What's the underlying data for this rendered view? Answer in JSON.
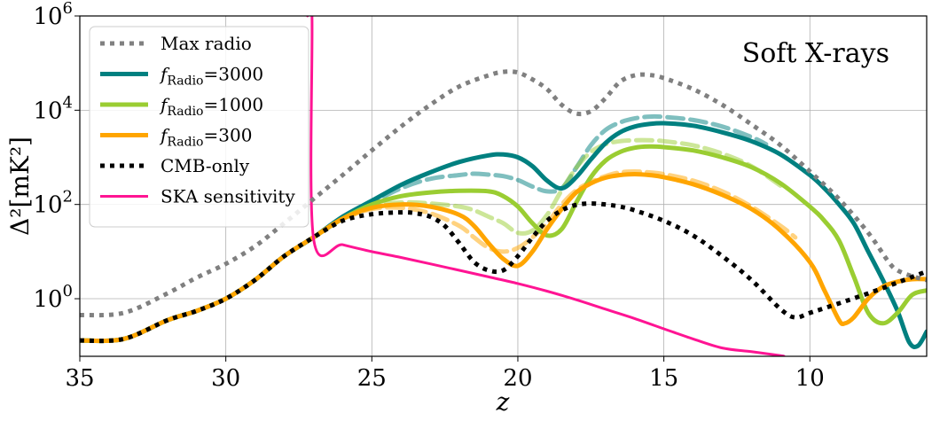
{
  "chart_data": {
    "type": "line",
    "title": "",
    "annotation": "Soft X-rays",
    "xlabel": "z",
    "ylabel": "Δ²[mK²]",
    "xlim": [
      35,
      6
    ],
    "ylim": [
      0.06,
      1000000
    ],
    "yscale": "log",
    "grid": true,
    "legend_position": "top-left",
    "x_ticks": [
      35,
      30,
      25,
      20,
      15,
      10
    ],
    "x_tick_labels": [
      "35",
      "30",
      "25",
      "20",
      "15",
      "10"
    ],
    "y_ticks": [
      1,
      100,
      10000,
      1000000
    ],
    "y_tick_labels": [
      {
        "base": "10",
        "exp": "0"
      },
      {
        "base": "10",
        "exp": "2"
      },
      {
        "base": "10",
        "exp": "4"
      },
      {
        "base": "10",
        "exp": "6"
      }
    ],
    "legend": [
      {
        "label": "Max radio",
        "color": "#808080",
        "style": "dotted"
      },
      {
        "label": "fRadio=3000",
        "math_base": "f",
        "math_sub": "Radio",
        "suffix": "=3000",
        "color": "#008080",
        "style": "solid"
      },
      {
        "label": "fRadio=1000",
        "math_base": "f",
        "math_sub": "Radio",
        "suffix": "=1000",
        "color": "#9ACD32",
        "style": "solid"
      },
      {
        "label": "fRadio=300",
        "math_base": "f",
        "math_sub": "Radio",
        "suffix": "=300",
        "color": "#FFA500",
        "style": "solid"
      },
      {
        "label": "CMB-only",
        "color": "#000000",
        "style": "dotted"
      },
      {
        "label": "SKA sensitivity",
        "color": "#FF1493",
        "style": "solid"
      }
    ],
    "series": [
      {
        "name": "Max radio",
        "color": "#808080",
        "style": "dotted",
        "x": [
          35,
          33.5,
          32,
          31,
          30,
          29,
          28,
          27,
          26,
          25,
          24,
          23,
          22,
          21,
          20.5,
          20,
          19.5,
          19,
          18.5,
          18,
          17.5,
          17,
          16.5,
          16,
          15.5,
          15,
          14,
          13,
          12,
          11,
          10,
          9,
          8,
          7.3,
          7,
          6.5,
          6
        ],
        "y": [
          0.45,
          0.5,
          1.3,
          2.8,
          5.5,
          13,
          40,
          130,
          420,
          1400,
          4500,
          13000,
          32000,
          55000,
          65000,
          63000,
          45000,
          28000,
          13000,
          8500,
          9500,
          18000,
          40000,
          55000,
          56000,
          48000,
          28000,
          13000,
          5000,
          1800,
          500,
          130,
          25,
          6,
          4,
          3,
          2.5
        ]
      },
      {
        "name": "fRadio=3000",
        "color": "#008080",
        "style": "solid",
        "x": [
          35,
          33.5,
          32,
          31,
          30,
          29,
          28,
          27,
          26,
          25,
          24,
          23,
          22,
          21,
          20.5,
          20,
          19.5,
          19,
          18.5,
          18,
          17.5,
          17,
          16.5,
          16,
          15.5,
          15,
          14,
          13,
          12,
          11,
          10,
          9.5,
          9,
          8.5,
          8,
          7.5,
          7,
          6.6,
          6.3,
          6
        ],
        "y": [
          0.13,
          0.14,
          0.35,
          0.55,
          1.0,
          2.5,
          8,
          20,
          55,
          120,
          260,
          480,
          800,
          1100,
          1150,
          1000,
          650,
          320,
          220,
          380,
          900,
          2000,
          3400,
          4500,
          5100,
          5300,
          4700,
          3400,
          2200,
          1150,
          420,
          220,
          100,
          40,
          10,
          2.5,
          0.55,
          0.12,
          0.1,
          0.2
        ]
      },
      {
        "name": "fRadio=3000 (dashed)",
        "color": "#008080",
        "style": "dashed",
        "alpha": 0.5,
        "x": [
          26,
          25,
          24,
          23,
          22,
          21.5,
          21,
          20.5,
          20,
          19.5,
          19,
          18.5,
          18,
          17.5,
          17,
          16.5,
          16,
          15.5,
          15,
          14,
          13,
          12,
          11.5
        ],
        "y": [
          55,
          110,
          220,
          350,
          420,
          450,
          430,
          400,
          330,
          240,
          190,
          220,
          600,
          1800,
          3800,
          5500,
          6700,
          7300,
          7200,
          6200,
          4500,
          2700,
          1900
        ]
      },
      {
        "name": "fRadio=1000",
        "color": "#9ACD32",
        "style": "solid",
        "x": [
          35,
          33.5,
          32,
          31,
          30,
          29,
          28,
          27,
          26,
          25,
          24,
          23,
          22,
          21,
          20.5,
          20,
          19.5,
          19,
          18.5,
          18,
          17.5,
          17,
          16.5,
          16,
          15.5,
          15,
          14,
          13,
          12,
          11,
          10,
          9.5,
          9,
          8.5,
          8,
          7.5,
          7,
          6.5,
          6
        ],
        "y": [
          0.13,
          0.14,
          0.35,
          0.55,
          1.0,
          2.5,
          8,
          20,
          50,
          100,
          150,
          180,
          195,
          190,
          150,
          90,
          40,
          22,
          30,
          110,
          380,
          850,
          1300,
          1600,
          1700,
          1650,
          1400,
          1000,
          620,
          280,
          90,
          45,
          17,
          3,
          0.5,
          0.3,
          0.5,
          1.2,
          1.5
        ]
      },
      {
        "name": "fRadio=1000 (dashed)",
        "color": "#9ACD32",
        "style": "dashed",
        "alpha": 0.5,
        "x": [
          26,
          25,
          24,
          23,
          22,
          21.5,
          21,
          20.5,
          20,
          19.5,
          19,
          18.5,
          18,
          17.5,
          17,
          16.5,
          16,
          15.5,
          15,
          14,
          13,
          12,
          11
        ],
        "y": [
          50,
          90,
          110,
          105,
          90,
          75,
          55,
          40,
          25,
          28,
          60,
          200,
          600,
          1300,
          1900,
          2200,
          2300,
          2300,
          2200,
          1800,
          1200,
          650,
          250
        ]
      },
      {
        "name": "fRadio=300",
        "color": "#FFA500",
        "style": "solid",
        "x": [
          35,
          33.5,
          32,
          31,
          30,
          29,
          28,
          27,
          26,
          25,
          24,
          23,
          22,
          21.5,
          21,
          20.5,
          20,
          19.5,
          19,
          18.5,
          18,
          17.5,
          17,
          16.5,
          16,
          15.5,
          15,
          14,
          13,
          12,
          11,
          10,
          9.5,
          9,
          8.8,
          8.5,
          8,
          7.5,
          7,
          6.5,
          6
        ],
        "y": [
          0.13,
          0.14,
          0.35,
          0.55,
          1.0,
          2.5,
          8,
          20,
          50,
          85,
          100,
          90,
          60,
          35,
          15,
          7,
          5,
          10,
          30,
          80,
          180,
          280,
          370,
          420,
          440,
          420,
          380,
          270,
          160,
          80,
          28,
          6,
          1.5,
          0.35,
          0.3,
          0.4,
          1,
          1.8,
          2.3,
          2.6,
          2.6
        ]
      },
      {
        "name": "fRadio=300 (dashed)",
        "color": "#FFA500",
        "style": "dashed",
        "alpha": 0.5,
        "x": [
          26,
          25,
          24,
          23,
          22,
          21.5,
          21,
          20.5,
          20,
          19.5,
          19,
          18.5,
          18,
          17.5,
          17,
          16.5,
          16,
          15.5,
          15,
          14,
          13,
          12,
          11,
          10.5
        ],
        "y": [
          50,
          80,
          85,
          65,
          35,
          20,
          12,
          10,
          12,
          20,
          40,
          100,
          200,
          300,
          400,
          480,
          500,
          480,
          440,
          320,
          190,
          90,
          35,
          20
        ]
      },
      {
        "name": "CMB-only",
        "color": "#000000",
        "style": "dotted",
        "x": [
          35,
          33.5,
          32,
          31,
          30,
          29,
          28,
          27,
          26,
          25,
          24,
          23.5,
          23,
          22.5,
          22,
          21.5,
          21,
          20.5,
          20,
          19.5,
          19,
          18.5,
          18,
          17.5,
          17,
          16.5,
          16,
          15,
          14,
          13,
          12,
          11,
          10.5,
          10,
          9,
          8,
          7,
          6
        ],
        "y": [
          0.13,
          0.14,
          0.35,
          0.55,
          1.0,
          2.5,
          8,
          20,
          45,
          62,
          68,
          65,
          55,
          35,
          15,
          6,
          4,
          4,
          8,
          20,
          45,
          75,
          98,
          105,
          100,
          90,
          75,
          45,
          22,
          8,
          2.5,
          0.6,
          0.4,
          0.5,
          0.8,
          1.3,
          2.2,
          3.8
        ]
      },
      {
        "name": "SKA sensitivity",
        "color": "#FF1493",
        "style": "solid",
        "x": [
          27.2,
          27.05,
          27.0,
          26,
          25,
          24,
          23,
          22,
          21,
          20,
          19,
          18,
          17,
          16,
          15,
          14,
          13,
          12,
          11,
          10.9
        ],
        "y": [
          1000000,
          1000000,
          20,
          14,
          10,
          7.5,
          5.5,
          4.0,
          2.9,
          2.1,
          1.45,
          0.95,
          0.6,
          0.38,
          0.23,
          0.14,
          0.09,
          0.075,
          0.062,
          0.06
        ]
      }
    ]
  }
}
